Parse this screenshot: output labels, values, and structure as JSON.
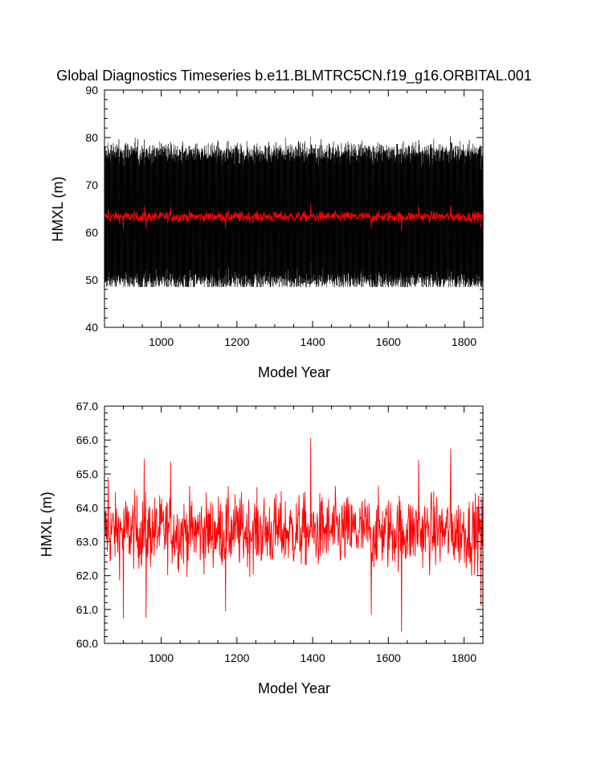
{
  "figure": {
    "title": "Global Diagnostics Timeseries b.e11.BLMTRC5CN.f19_g16.ORBITAL.001"
  },
  "chart_data": [
    {
      "type": "line",
      "xlabel": "Model Year",
      "ylabel": "HMXL (m)",
      "xlim": [
        850,
        1850
      ],
      "ylim": [
        40,
        90
      ],
      "x_ticks": [
        1000,
        1200,
        1400,
        1600,
        1800
      ],
      "x_tick_labels": [
        "1000",
        "1200",
        "1400",
        "1600",
        "1800"
      ],
      "y_ticks": [
        40,
        50,
        60,
        70,
        80,
        90
      ],
      "y_tick_labels": [
        "40",
        "50",
        "60",
        "70",
        "80",
        "90"
      ],
      "grid": false,
      "series": [
        {
          "style": "monthly",
          "color": "#000000",
          "description_values": {
            "mean": 63.3,
            "typical_min": 51,
            "typical_max": 79,
            "extreme_min": 48.5,
            "extreme_max": 82
          },
          "x_range": [
            850,
            1850
          ],
          "seasonal_amplitude": 13.5
        },
        {
          "style": "annual",
          "color": "#ff0000",
          "x_range": [
            850,
            1850
          ],
          "approx_values_by_century": {
            "x": [
              900,
              1000,
              1100,
              1200,
              1300,
              1400,
              1500,
              1600,
              1700,
              1800
            ],
            "y": [
              63.1,
              63.2,
              63.4,
              63.3,
              63.5,
              63.6,
              63.4,
              63.3,
              63.4,
              63.3
            ]
          }
        }
      ]
    },
    {
      "type": "line",
      "xlabel": "Model Year",
      "ylabel": "HMXL (m)",
      "xlim": [
        850,
        1850
      ],
      "ylim": [
        60.0,
        67.0
      ],
      "x_ticks": [
        1000,
        1200,
        1400,
        1600,
        1800
      ],
      "x_tick_labels": [
        "1000",
        "1200",
        "1400",
        "1600",
        "1800"
      ],
      "y_ticks": [
        60,
        61,
        62,
        63,
        64,
        65,
        66,
        67
      ],
      "y_tick_labels": [
        "60.0",
        "61.0",
        "62.0",
        "63.0",
        "64.0",
        "65.0",
        "66.0",
        "67.0"
      ],
      "grid": false,
      "series": [
        {
          "style": "annual",
          "color": "#ff0000",
          "x_range": [
            850,
            1850
          ],
          "mean": 63.3,
          "notable_points": [
            {
              "x": 860,
              "y": 64.9
            },
            {
              "x": 900,
              "y": 60.75
            },
            {
              "x": 955,
              "y": 65.45
            },
            {
              "x": 960,
              "y": 60.75
            },
            {
              "x": 1025,
              "y": 65.35
            },
            {
              "x": 1170,
              "y": 60.95
            },
            {
              "x": 1395,
              "y": 66.05
            },
            {
              "x": 1555,
              "y": 60.85
            },
            {
              "x": 1635,
              "y": 60.35
            },
            {
              "x": 1680,
              "y": 65.4
            },
            {
              "x": 1765,
              "y": 65.75
            },
            {
              "x": 1845,
              "y": 61.1
            }
          ]
        }
      ]
    }
  ]
}
